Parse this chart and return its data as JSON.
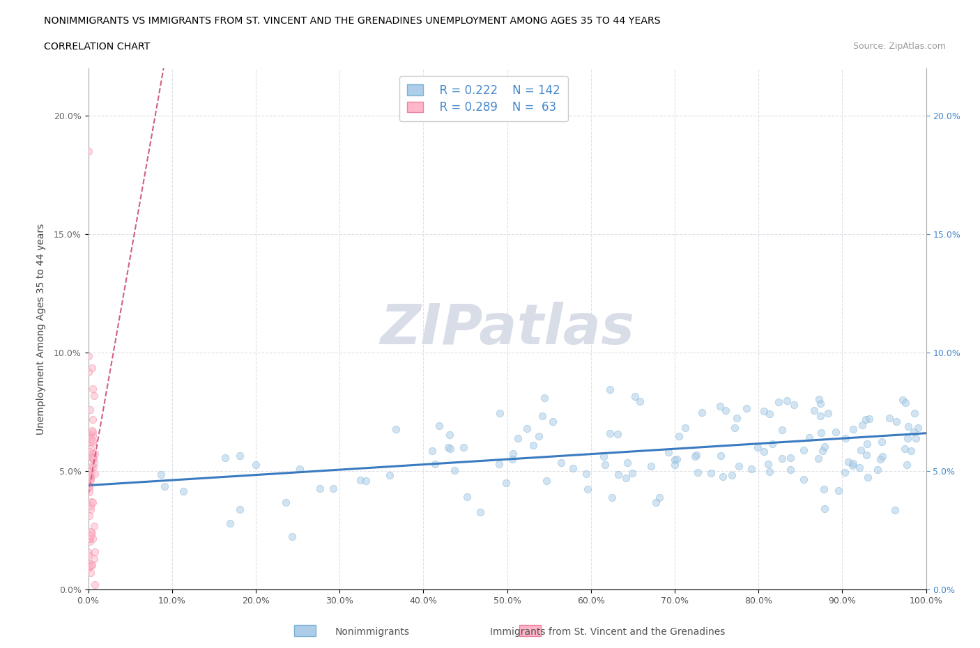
{
  "title_line1": "NONIMMIGRANTS VS IMMIGRANTS FROM ST. VINCENT AND THE GRENADINES UNEMPLOYMENT AMONG AGES 35 TO 44 YEARS",
  "title_line2": "CORRELATION CHART",
  "source_text": "Source: ZipAtlas.com",
  "ylabel": "Unemployment Among Ages 35 to 44 years",
  "xlim": [
    0,
    1.0
  ],
  "ylim": [
    0,
    0.22
  ],
  "xticks": [
    0.0,
    0.1,
    0.2,
    0.3,
    0.4,
    0.5,
    0.6,
    0.7,
    0.8,
    0.9,
    1.0
  ],
  "xticklabels": [
    "0.0%",
    "10.0%",
    "20.0%",
    "30.0%",
    "40.0%",
    "50.0%",
    "60.0%",
    "70.0%",
    "80.0%",
    "90.0%",
    "100.0%"
  ],
  "yticks": [
    0.0,
    0.05,
    0.1,
    0.15,
    0.2
  ],
  "yticklabels_left": [
    "0.0%",
    "5.0%",
    "10.0%",
    "15.0%",
    "20.0%"
  ],
  "yticklabels_right": [
    "0.0%",
    "5.0%",
    "10.0%",
    "15.0%",
    "20.0%"
  ],
  "nonimm_R": 0.222,
  "nonimm_N": 142,
  "imm_R": 0.289,
  "imm_N": 63,
  "nonimm_color": "#aecde8",
  "nonimm_edge_color": "#7ab3d4",
  "imm_color": "#ffb6c8",
  "imm_edge_color": "#f080a0",
  "nonimm_line_color": "#3a7abf",
  "imm_line_color": "#d06080",
  "grid_color": "#e0e0e8",
  "grid_style": "--",
  "watermark_text": "ZIPatlas",
  "watermark_color": "#d8dde8",
  "legend_label_nonimm": "Nonimmigrants",
  "legend_label_imm": "Immigrants from St. Vincent and the Grenadines",
  "nonimm_line_intercept": 0.044,
  "nonimm_line_slope": 0.022,
  "imm_line_intercept": 0.04,
  "imm_line_slope": 2.0,
  "left_tick_color": "#666666",
  "right_tick_color": "#4488cc",
  "scatter_size": 55,
  "scatter_alpha": 0.55
}
